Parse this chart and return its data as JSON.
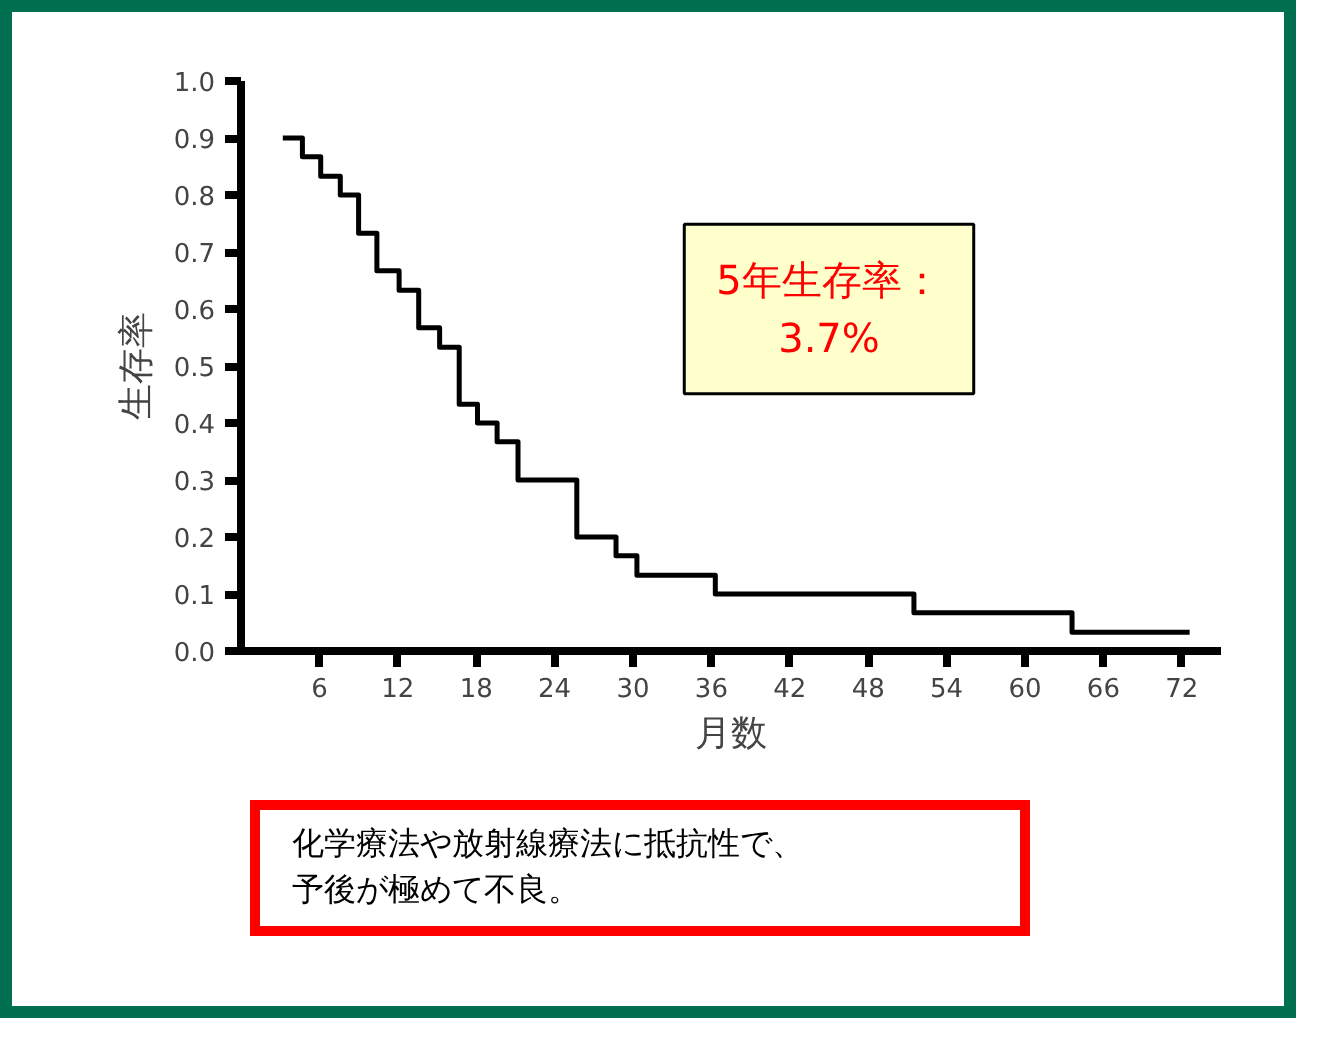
{
  "chart_data": {
    "type": "step",
    "xlabel": "月数",
    "ylabel": "生存率",
    "x": [
      3.2,
      4.7,
      6.1,
      7.6,
      9.0,
      10.4,
      12.1,
      13.6,
      15.2,
      16.7,
      18.1,
      19.6,
      21.2,
      25.7,
      28.7,
      30.3,
      36.3,
      51.5,
      63.6,
      72.6
    ],
    "series": [
      {
        "color": "#000000",
        "values": [
          0.9,
          0.867,
          0.833,
          0.8,
          0.733,
          0.667,
          0.633,
          0.567,
          0.533,
          0.433,
          0.4,
          0.367,
          0.3,
          0.2,
          0.167,
          0.133,
          0.1,
          0.067,
          0.033,
          0.033
        ]
      }
    ],
    "xlim": [
      0,
      75
    ],
    "ylim": [
      0,
      1.0
    ],
    "xticks": [
      6,
      12,
      18,
      24,
      30,
      36,
      42,
      48,
      54,
      60,
      66,
      72
    ],
    "yticks": [
      {
        "value": 0,
        "label": "0.0"
      },
      0.1,
      0.2,
      0.3,
      0.4,
      0.5,
      0.6,
      0.7,
      0.8,
      0.9,
      {
        "value": 1,
        "label": "1.0"
      }
    ],
    "grid": false,
    "marker": "none",
    "line_style": "solid",
    "annotations": [
      "5年生存率：",
      "3.7%",
      "化学療法や放射線療法に抵抗性で、",
      "予後が極めて不良。"
    ]
  }
}
